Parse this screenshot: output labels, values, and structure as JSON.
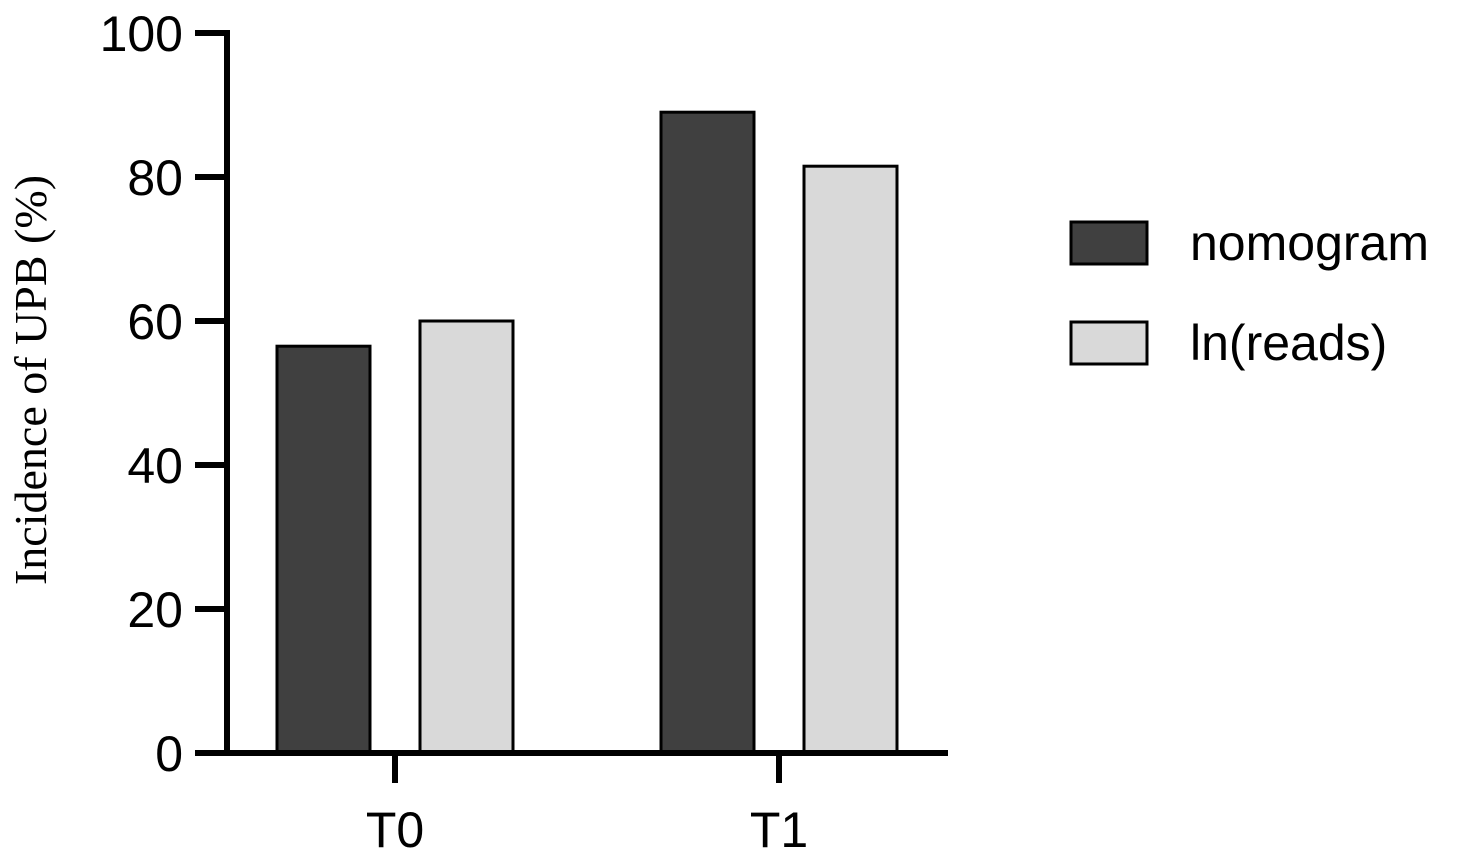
{
  "chart_data": {
    "type": "bar",
    "title": "",
    "xlabel": "",
    "ylabel": "Incidence of UPB (%)",
    "categories": [
      "T0",
      "T1"
    ],
    "series": [
      {
        "name": "nomogram",
        "values": [
          56.5,
          89
        ],
        "color": "#404040"
      },
      {
        "name": "ln(reads)",
        "values": [
          60,
          81.5
        ],
        "color": "#d9d9d9"
      }
    ],
    "ylim": [
      0,
      100
    ],
    "yticks": [
      "0",
      "20",
      "40",
      "60",
      "80",
      "100"
    ],
    "grid": false,
    "legend_position": "right"
  }
}
